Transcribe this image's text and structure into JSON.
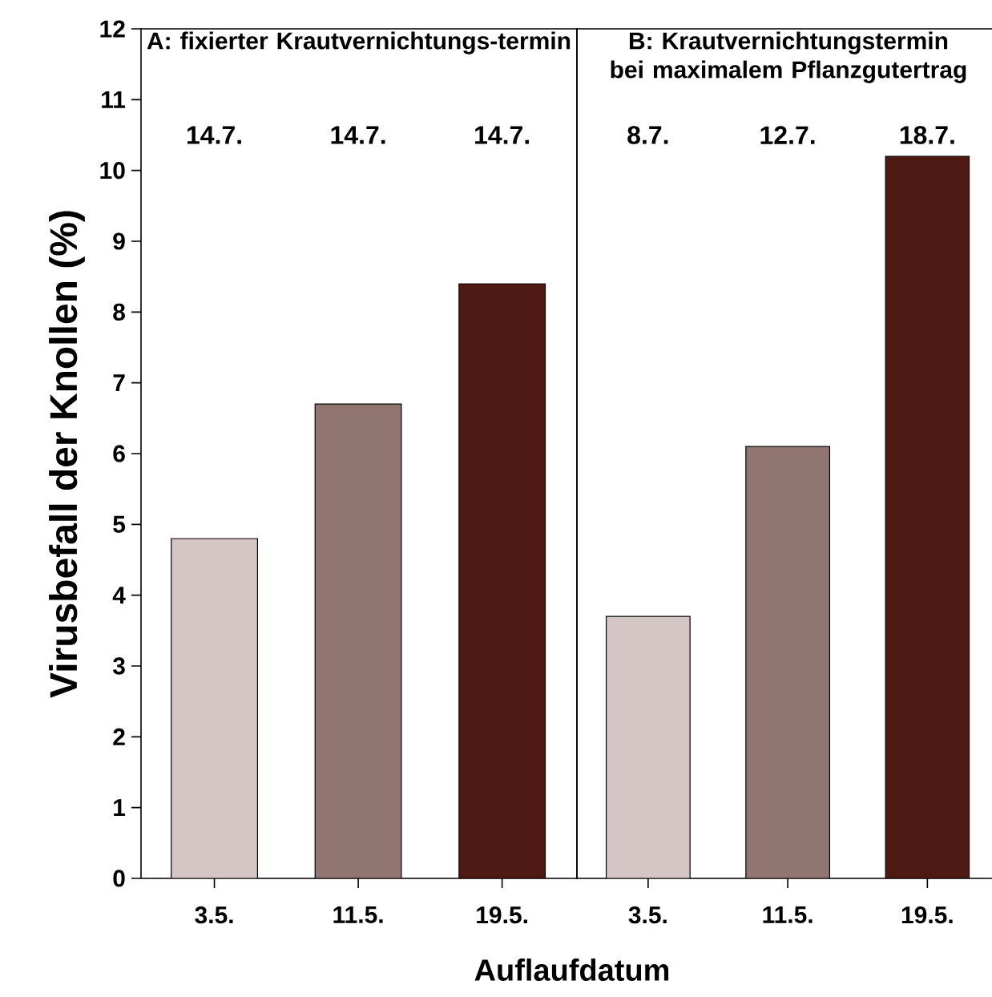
{
  "chart_data": [
    {
      "type": "bar",
      "title": "A: fixierter Krautvernichtungs-termin",
      "ylabel": "Virusbefall der Knollen (%)",
      "xlabel": "Auflaufdatum",
      "categories": [
        "3.5.",
        "11.5.",
        "19.5."
      ],
      "values": [
        4.8,
        6.7,
        8.4
      ],
      "colors": [
        "#d4c6c4",
        "#917570",
        "#4e1912"
      ],
      "ylim": [
        0,
        12
      ],
      "yticks": [
        0,
        1,
        2,
        3,
        4,
        5,
        6,
        7,
        8,
        9,
        10,
        11,
        12
      ],
      "grid": false,
      "annotations": [
        "14.7.",
        "14.7.",
        "14.7."
      ]
    },
    {
      "type": "bar",
      "title": "B: Krautvernichtungstermin bei maximalem Pflanzgutertrag",
      "categories": [
        "3.5.",
        "11.5.",
        "19.5."
      ],
      "values": [
        3.7,
        6.1,
        10.2
      ],
      "colors": [
        "#d4c6c4",
        "#917570",
        "#4e1912"
      ],
      "ylim": [
        0,
        12
      ],
      "tick_labels": "x",
      "grid": false,
      "annotations": [
        "8.7.",
        "12.7.",
        "18.7."
      ]
    }
  ]
}
